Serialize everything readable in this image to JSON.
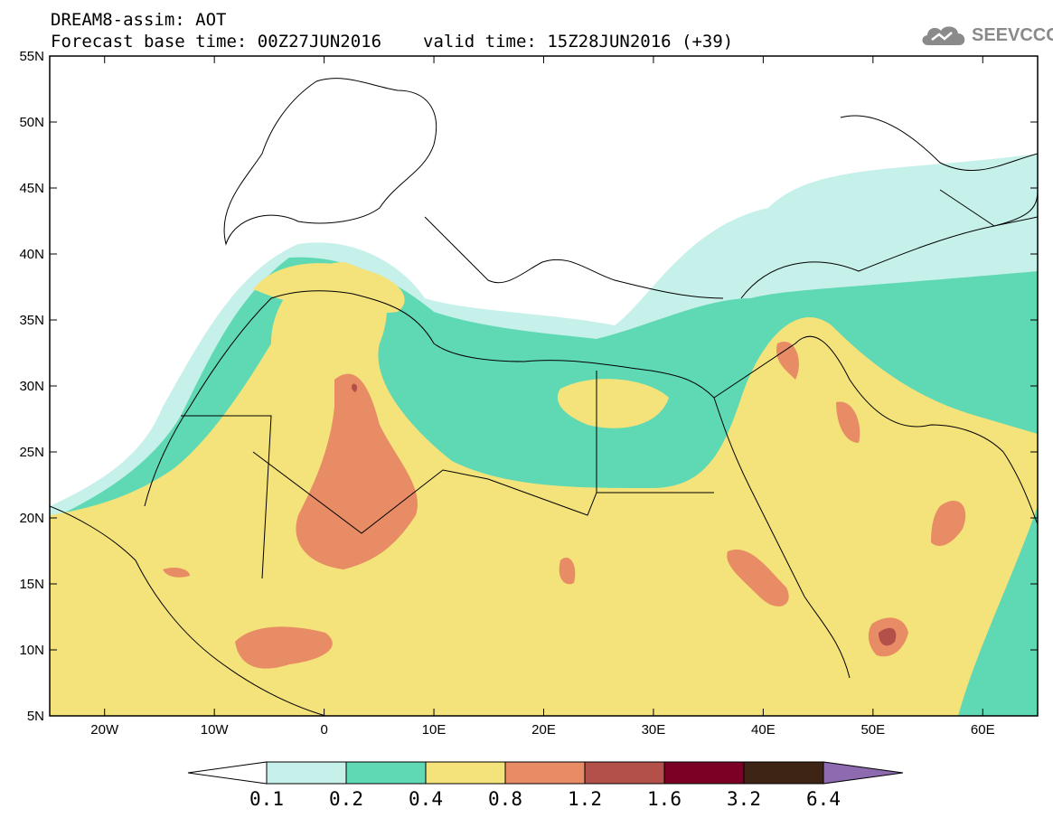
{
  "header": {
    "title_line1": "DREAM8-assim: AOT",
    "base_time_label": "Forecast base time: 00Z27JUN2016",
    "valid_time_label": "valid time: 15Z28JUN2016 (+39)"
  },
  "logo": {
    "text": "SEEVCCC",
    "icon": "cloud-icon"
  },
  "map": {
    "region": "North Africa, Mediterranean and Middle East",
    "lon_range": [
      -25,
      65
    ],
    "lat_range": [
      5,
      55
    ],
    "lat_ticks": [
      {
        "value": 55,
        "label": "55N"
      },
      {
        "value": 50,
        "label": "50N"
      },
      {
        "value": 45,
        "label": "45N"
      },
      {
        "value": 40,
        "label": "40N"
      },
      {
        "value": 35,
        "label": "35N"
      },
      {
        "value": 30,
        "label": "30N"
      },
      {
        "value": 25,
        "label": "25N"
      },
      {
        "value": 20,
        "label": "20N"
      },
      {
        "value": 15,
        "label": "15N"
      },
      {
        "value": 10,
        "label": "10N"
      },
      {
        "value": 5,
        "label": "5N"
      }
    ],
    "lon_ticks": [
      {
        "value": -20,
        "label": "20W"
      },
      {
        "value": -10,
        "label": "10W"
      },
      {
        "value": 0,
        "label": "0"
      },
      {
        "value": 10,
        "label": "10E"
      },
      {
        "value": 20,
        "label": "20E"
      },
      {
        "value": 30,
        "label": "30E"
      },
      {
        "value": 40,
        "label": "40E"
      },
      {
        "value": 50,
        "label": "50E"
      },
      {
        "value": 60,
        "label": "60E"
      }
    ]
  },
  "colorbar": {
    "colors": [
      "#c6f0ea",
      "#5ed9b4",
      "#f4e27a",
      "#e88c66",
      "#b3504a",
      "#7a0026",
      "#3d2414",
      "#8e6bb0"
    ],
    "under_color": "#ffffff",
    "labels": [
      "0.1",
      "0.2",
      "0.4",
      "0.8",
      "1.2",
      "1.6",
      "3.2",
      "6.4"
    ]
  }
}
